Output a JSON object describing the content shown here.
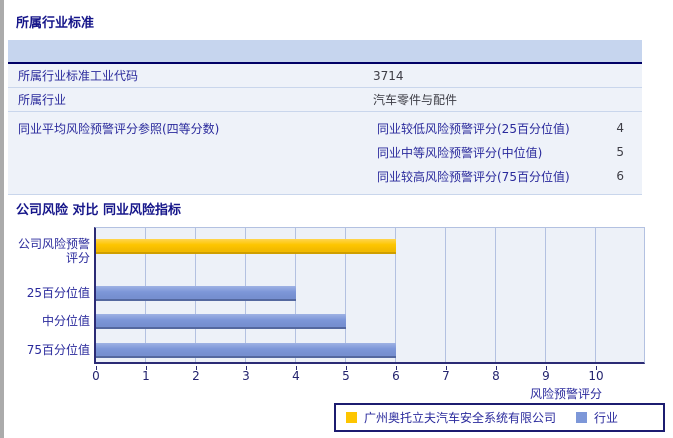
{
  "section1": {
    "title": "所属行业标准",
    "table": {
      "rows": [
        {
          "label": "所属行业标准工业代码",
          "value": "3714"
        },
        {
          "label": "所属行业",
          "value": "汽车零件与配件"
        }
      ],
      "group_row": {
        "label": "同业平均风险预警评分参照(四等分数)",
        "sub_rows": [
          {
            "label": "同业较低风险预警评分(25百分位值)",
            "value": "4"
          },
          {
            "label": "同业中等风险预警评分(中位值)",
            "value": "5"
          },
          {
            "label": "同业较高风险预警评分(75百分位值)",
            "value": "6"
          }
        ]
      }
    }
  },
  "section2": {
    "title": "公司风险 对比 同业风险指标"
  },
  "chart_data": {
    "type": "bar",
    "orientation": "horizontal",
    "categories": [
      "公司风险预警评分",
      "25百分位值",
      "中分位值",
      "75百分位值"
    ],
    "values": [
      6,
      4,
      5,
      6
    ],
    "series_of": [
      0,
      1,
      1,
      1
    ],
    "xlabel": "风险预警评分",
    "xlim": [
      0,
      11
    ],
    "ticks": [
      0,
      1,
      2,
      3,
      4,
      5,
      6,
      7,
      8,
      9,
      10
    ],
    "grid": true,
    "legend_position": "bottom-right",
    "legend": [
      {
        "label": "广州奥托立夫汽车安全系统有限公司",
        "color": "#FDC500",
        "series": "company"
      },
      {
        "label": "行业",
        "color": "#7D97D8",
        "series": "industry"
      }
    ],
    "colors": {
      "plot_bg": "#EDF1F8",
      "gridline": "#B3C1E1",
      "axis": "#2B2B75",
      "company_bar": "#FDC500",
      "industry_bar": "#7D97D8",
      "text": "#2A2A9C"
    }
  }
}
